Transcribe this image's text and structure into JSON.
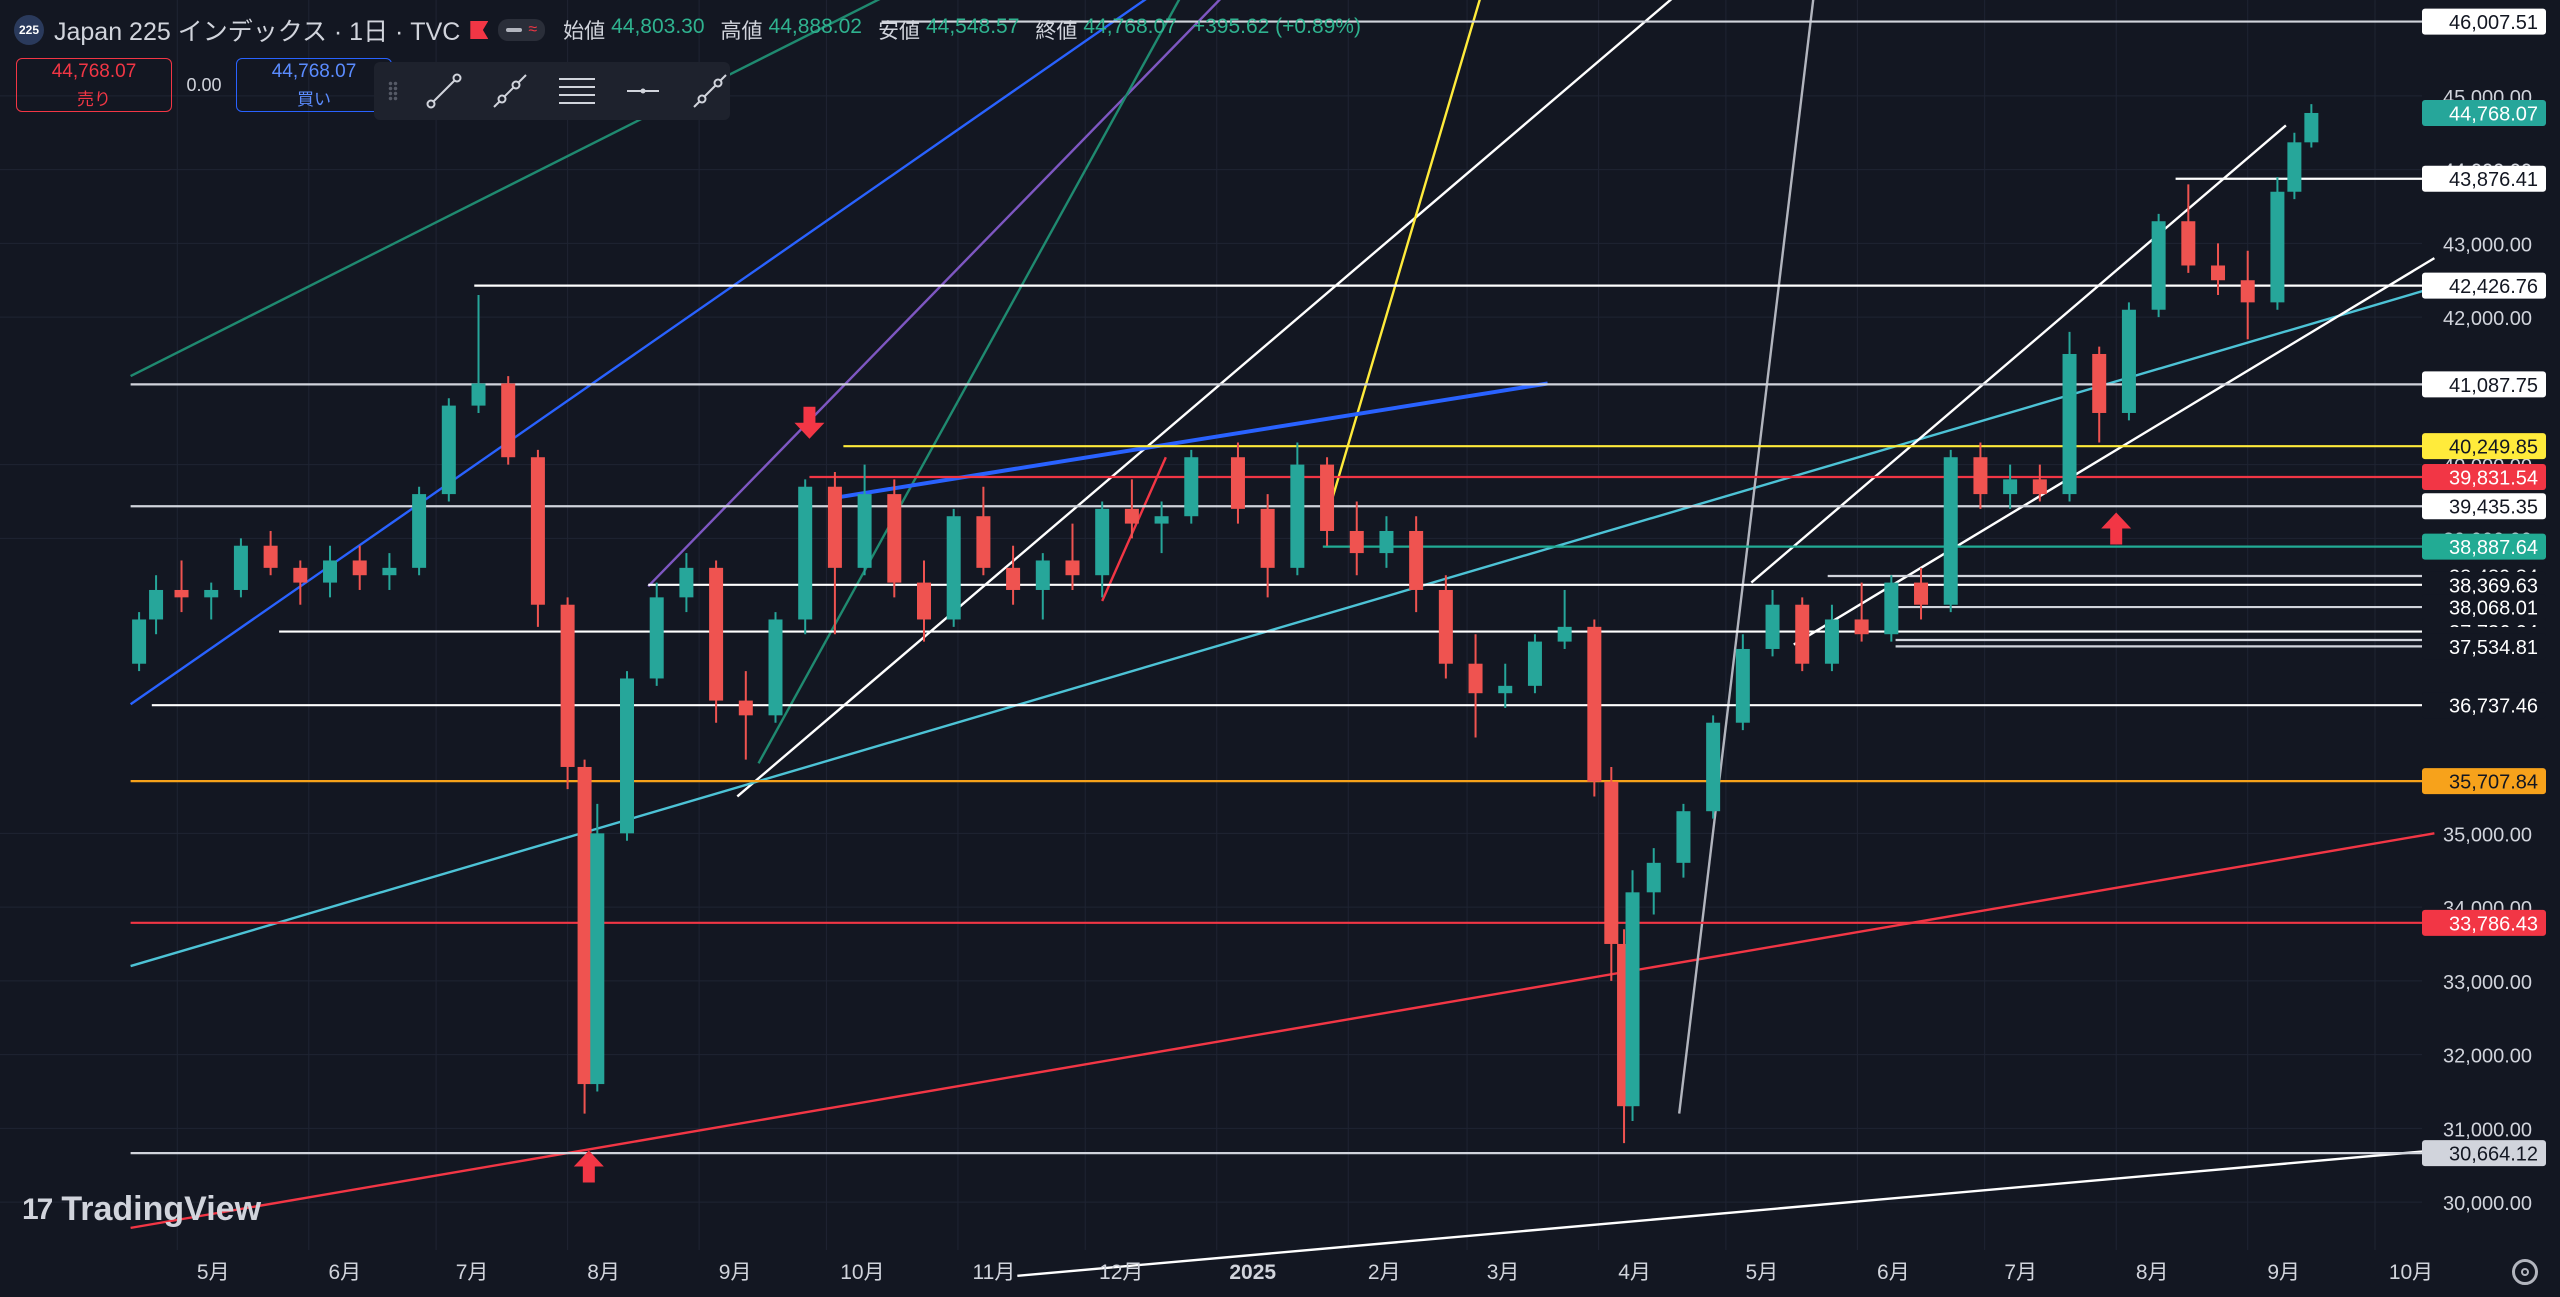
{
  "header": {
    "badge": "225",
    "title": "Japan 225 インデックス · 1日 · TVC",
    "ohlc": [
      {
        "k": "始値",
        "v": "44,803.30"
      },
      {
        "k": "高値",
        "v": "44,888.02"
      },
      {
        "k": "安値",
        "v": "44,548.57"
      },
      {
        "k": "終値",
        "v": "44,768.07"
      },
      {
        "k": "",
        "v": "+395.62 (+0.89%)"
      }
    ]
  },
  "trade": {
    "sell_price": "44,768.07",
    "sell_label": "売り",
    "spread": "0.00",
    "buy_price": "44,768.07",
    "buy_label": "買い"
  },
  "toolbar": {
    "tools": [
      "trend-line-icon",
      "ray-icon",
      "parallel-channel-icon",
      "horizontal-line-icon",
      "extended-line-icon"
    ]
  },
  "logo": {
    "text": "TradingView"
  },
  "colors": {
    "bg": "#131722",
    "up": "#26a69a",
    "down": "#ef5350",
    "grid": "#1f2433"
  },
  "chart_data": {
    "type": "candlestick",
    "y_ticks": [
      "45,000.00",
      "44,000.00",
      "43,000.00",
      "42,000.00",
      "40,000.00",
      "39,000.00",
      "35,000.00",
      "34,000.00",
      "33,000.00",
      "32,000.00",
      "31,000.00",
      "30,000.00"
    ],
    "x_ticks": [
      "5月",
      "6月",
      "7月",
      "8月",
      "9月",
      "10月",
      "11月",
      "12月",
      "2025",
      "2月",
      "3月",
      "4月",
      "5月",
      "6月",
      "7月",
      "8月",
      "9月",
      "10月"
    ],
    "ylim": [
      29350,
      46300
    ],
    "last_price": 44768.07,
    "price_labels": [
      {
        "v": 46007.51,
        "text": "46,007.51",
        "bg": "#ffffff",
        "fg": "#131722"
      },
      {
        "v": 44768.07,
        "text": "44,768.07",
        "bg": "#26a69a",
        "fg": "#ffffff"
      },
      {
        "v": 43876.41,
        "text": "43,876.41",
        "bg": "#ffffff",
        "fg": "#131722"
      },
      {
        "v": 42426.76,
        "text": "42,426.76",
        "bg": "#ffffff",
        "fg": "#131722"
      },
      {
        "v": 41087.75,
        "text": "41,087.75",
        "bg": "#ffffff",
        "fg": "#131722"
      },
      {
        "v": 40249.85,
        "text": "40,249.85",
        "bg": "#ffeb3b",
        "fg": "#131722"
      },
      {
        "v": 39831.54,
        "text": "39,831.54",
        "bg": "#f23645",
        "fg": "#ffffff"
      },
      {
        "v": 39435.35,
        "text": "39,435.35",
        "bg": "#ffffff",
        "fg": "#131722"
      },
      {
        "v": 38887.64,
        "text": "38,887.64",
        "bg": "#22ab94",
        "fg": "#ffffff"
      },
      {
        "v": 38489.84,
        "text": "38,489.84",
        "bg": "#131722",
        "fg": "#ffffff"
      },
      {
        "v": 38369.63,
        "text": "38,369.63",
        "bg": "#131722",
        "fg": "#ffffff"
      },
      {
        "v": 38068.01,
        "text": "38,068.01",
        "bg": "#131722",
        "fg": "#ffffff"
      },
      {
        "v": 37736.04,
        "text": "37,736.04",
        "bg": "#131722",
        "fg": "#ffffff"
      },
      {
        "v": 37621.77,
        "text": "37,621.77",
        "bg": "#131722",
        "fg": "#ffffff"
      },
      {
        "v": 37534.81,
        "text": "37,534.81",
        "bg": "#131722",
        "fg": "#ffffff"
      },
      {
        "v": 36737.46,
        "text": "36,737.46",
        "bg": "#131722",
        "fg": "#ffffff"
      },
      {
        "v": 35707.84,
        "text": "35,707.84",
        "bg": "#f7a21b",
        "fg": "#131722"
      },
      {
        "v": 33786.43,
        "text": "33,786.43",
        "bg": "#f23645",
        "fg": "#ffffff"
      },
      {
        "v": 30664.12,
        "text": "30,664.12",
        "bg": "#d1d4dc",
        "fg": "#131722"
      }
    ],
    "horizontal_lines": [
      {
        "v": 46007.51,
        "from": "2024-10-14",
        "color": "#d1d4dc"
      },
      {
        "v": 43876.41,
        "from": "2025-08-15",
        "color": "#ffffff"
      },
      {
        "v": 42426.76,
        "from": "2024-07-10",
        "color": "#ffffff"
      },
      {
        "v": 41087.75,
        "from": "2024-04-20",
        "color": "#d1d4dc"
      },
      {
        "v": 40249.85,
        "from": "2024-10-05",
        "color": "#ffeb3b"
      },
      {
        "v": 39831.54,
        "from": "2024-09-27",
        "color": "#f23645"
      },
      {
        "v": 39435.35,
        "from": "2024-04-20",
        "color": "#d1d4dc"
      },
      {
        "v": 38887.64,
        "from": "2025-01-26",
        "color": "#22ab94"
      },
      {
        "v": 38489.84,
        "from": "2025-05-25",
        "color": "#d1d4dc"
      },
      {
        "v": 38369.63,
        "from": "2024-08-20",
        "color": "#ffffff"
      },
      {
        "v": 38068.01,
        "from": "2025-06-10",
        "color": "#d1d4dc"
      },
      {
        "v": 37736.04,
        "from": "2024-05-25",
        "color": "#ffffff"
      },
      {
        "v": 37621.77,
        "from": "2025-06-10",
        "color": "#d1d4dc"
      },
      {
        "v": 37534.81,
        "from": "2025-06-10",
        "color": "#d1d4dc"
      },
      {
        "v": 36737.46,
        "from": "2024-04-25",
        "color": "#ffffff"
      },
      {
        "v": 35707.84,
        "from": "2024-04-20",
        "color": "#f7a21b"
      },
      {
        "v": 33786.43,
        "from": "2024-04-20",
        "color": "#f23645"
      },
      {
        "v": 30664.12,
        "from": "2024-04-20",
        "color": "#d1d4dc"
      }
    ],
    "trend_lines": [
      {
        "from": [
          "2024-04-20",
          41200
        ],
        "to": [
          "2024-10-20",
          46500
        ],
        "color": "#1f8a70"
      },
      {
        "from": [
          "2024-04-20",
          36750
        ],
        "to": [
          "2024-12-20",
          46500
        ],
        "color": "#2962ff"
      },
      {
        "from": [
          "2024-08-20",
          38350
        ],
        "to": [
          "2025-01-05",
          46500
        ],
        "color": "#7e57c2"
      },
      {
        "from": [
          "2024-09-15",
          35950
        ],
        "to": [
          "2024-12-25",
          46500
        ],
        "color": "#1f8a70"
      },
      {
        "from": [
          "2024-09-10",
          35500
        ],
        "to": [
          "2025-04-22",
          46500
        ],
        "color": "#ffffff"
      },
      {
        "from": [
          "2025-01-27",
          39300
        ],
        "to": [
          "2025-03-05",
          46500
        ],
        "color": "#ffeb3b"
      },
      {
        "from": [
          "2024-04-20",
          33200
        ],
        "to": [
          "2025-10-15",
          42400
        ],
        "color": "#4dc3d6"
      },
      {
        "from": [
          "2024-04-20",
          29650
        ],
        "to": [
          "2025-10-15",
          35000
        ],
        "color": "#f23645"
      },
      {
        "from": [
          "2024-11-15",
          29000
        ],
        "to": [
          "2025-10-15",
          30700
        ],
        "color": "#ffffff"
      },
      {
        "from": [
          "2025-05-07",
          38400
        ],
        "to": [
          "2025-09-10",
          44600
        ],
        "color": "#ffffff"
      },
      {
        "from": [
          "2025-05-17",
          37560
        ],
        "to": [
          "2025-10-15",
          42800
        ],
        "color": "#ffffff"
      },
      {
        "from": [
          "2025-04-20",
          31200
        ],
        "to": [
          "2025-05-22",
          46500
        ],
        "color": "#b2b5be"
      },
      {
        "from": [
          "2024-10-03",
          39550
        ],
        "to": [
          "2025-03-20",
          41100
        ],
        "color": "#2962ff"
      },
      {
        "from": [
          "2024-12-05",
          38150
        ],
        "to": [
          "2024-12-20",
          40100
        ],
        "color": "#f23645"
      }
    ],
    "arrows": [
      {
        "date": "2024-08-06",
        "v": 30700,
        "dir": "up"
      },
      {
        "date": "2024-09-27",
        "v": 40350,
        "dir": "down"
      },
      {
        "date": "2025-08-01",
        "v": 39350,
        "dir": "up"
      }
    ],
    "candles": [
      [
        "2024-04-22",
        37300,
        38000,
        37200,
        37900
      ],
      [
        "2024-04-26",
        37900,
        38500,
        37700,
        38300
      ],
      [
        "2024-05-02",
        38300,
        38700,
        38000,
        38200
      ],
      [
        "2024-05-09",
        38200,
        38400,
        37900,
        38300
      ],
      [
        "2024-05-16",
        38300,
        39000,
        38200,
        38900
      ],
      [
        "2024-05-23",
        38900,
        39100,
        38500,
        38600
      ],
      [
        "2024-05-30",
        38600,
        38700,
        38100,
        38400
      ],
      [
        "2024-06-06",
        38400,
        38900,
        38200,
        38700
      ],
      [
        "2024-06-13",
        38700,
        38900,
        38300,
        38500
      ],
      [
        "2024-06-20",
        38500,
        38800,
        38300,
        38600
      ],
      [
        "2024-06-27",
        38600,
        39700,
        38500,
        39600
      ],
      [
        "2024-07-04",
        39600,
        40900,
        39500,
        40800
      ],
      [
        "2024-07-11",
        40800,
        42300,
        40700,
        41100
      ],
      [
        "2024-07-18",
        41100,
        41200,
        40000,
        40100
      ],
      [
        "2024-07-25",
        40100,
        40200,
        37800,
        38100
      ],
      [
        "2024-08-01",
        38100,
        38200,
        35600,
        35900
      ],
      [
        "2024-08-05",
        35900,
        36000,
        31200,
        31600
      ],
      [
        "2024-08-08",
        31600,
        35400,
        31500,
        35000
      ],
      [
        "2024-08-15",
        35000,
        37200,
        34900,
        37100
      ],
      [
        "2024-08-22",
        37100,
        38400,
        37000,
        38200
      ],
      [
        "2024-08-29",
        38200,
        38800,
        38000,
        38600
      ],
      [
        "2024-09-05",
        38600,
        38700,
        36500,
        36800
      ],
      [
        "2024-09-12",
        36800,
        37200,
        36000,
        36600
      ],
      [
        "2024-09-19",
        36600,
        38000,
        36500,
        37900
      ],
      [
        "2024-09-26",
        37900,
        39800,
        37700,
        39700
      ],
      [
        "2024-10-03",
        39700,
        39900,
        37700,
        38600
      ],
      [
        "2024-10-10",
        38600,
        40000,
        38500,
        39600
      ],
      [
        "2024-10-17",
        39600,
        39800,
        38200,
        38400
      ],
      [
        "2024-10-24",
        38400,
        38700,
        37600,
        37900
      ],
      [
        "2024-10-31",
        37900,
        39400,
        37800,
        39300
      ],
      [
        "2024-11-07",
        39300,
        39700,
        38500,
        38600
      ],
      [
        "2024-11-14",
        38600,
        38900,
        38100,
        38300
      ],
      [
        "2024-11-21",
        38300,
        38800,
        37900,
        38700
      ],
      [
        "2024-11-28",
        38700,
        39200,
        38300,
        38500
      ],
      [
        "2024-12-05",
        38500,
        39500,
        38200,
        39400
      ],
      [
        "2024-12-12",
        39400,
        39800,
        39000,
        39200
      ],
      [
        "2024-12-19",
        39200,
        39500,
        38800,
        39300
      ],
      [
        "2024-12-26",
        39300,
        40200,
        39200,
        40100
      ],
      [
        "2025-01-06",
        40100,
        40300,
        39200,
        39400
      ],
      [
        "2025-01-13",
        39400,
        39600,
        38200,
        38600
      ],
      [
        "2025-01-20",
        38600,
        40300,
        38500,
        40000
      ],
      [
        "2025-01-27",
        40000,
        40100,
        38900,
        39100
      ],
      [
        "2025-02-03",
        39100,
        39500,
        38500,
        38800
      ],
      [
        "2025-02-10",
        38800,
        39300,
        38600,
        39100
      ],
      [
        "2025-02-17",
        39100,
        39300,
        38000,
        38300
      ],
      [
        "2025-02-24",
        38300,
        38500,
        37100,
        37300
      ],
      [
        "2025-03-03",
        37300,
        37700,
        36300,
        36900
      ],
      [
        "2025-03-10",
        36900,
        37300,
        36700,
        37000
      ],
      [
        "2025-03-17",
        37000,
        37700,
        36900,
        37600
      ],
      [
        "2025-03-24",
        37600,
        38300,
        37500,
        37800
      ],
      [
        "2025-03-31",
        37800,
        37900,
        35500,
        35700
      ],
      [
        "2025-04-04",
        35700,
        35900,
        33000,
        33500
      ],
      [
        "2025-04-07",
        33500,
        33700,
        30800,
        31300
      ],
      [
        "2025-04-09",
        31300,
        34500,
        31100,
        34200
      ],
      [
        "2025-04-14",
        34200,
        34800,
        33900,
        34600
      ],
      [
        "2025-04-21",
        34600,
        35400,
        34400,
        35300
      ],
      [
        "2025-04-28",
        35300,
        36600,
        35200,
        36500
      ],
      [
        "2025-05-05",
        36500,
        37700,
        36400,
        37500
      ],
      [
        "2025-05-12",
        37500,
        38300,
        37400,
        38100
      ],
      [
        "2025-05-19",
        38100,
        38200,
        37200,
        37300
      ],
      [
        "2025-05-26",
        37300,
        38100,
        37200,
        37900
      ],
      [
        "2025-06-02",
        37900,
        38400,
        37600,
        37700
      ],
      [
        "2025-06-09",
        37700,
        38500,
        37600,
        38400
      ],
      [
        "2025-06-16",
        38400,
        38600,
        37900,
        38100
      ],
      [
        "2025-06-23",
        38100,
        40200,
        38000,
        40100
      ],
      [
        "2025-06-30",
        40100,
        40300,
        39400,
        39600
      ],
      [
        "2025-07-07",
        39600,
        40000,
        39400,
        39800
      ],
      [
        "2025-07-14",
        39800,
        40000,
        39500,
        39600
      ],
      [
        "2025-07-21",
        39600,
        41800,
        39500,
        41500
      ],
      [
        "2025-07-28",
        41500,
        41600,
        40300,
        40700
      ],
      [
        "2025-08-04",
        40700,
        42200,
        40600,
        42100
      ],
      [
        "2025-08-11",
        42100,
        43400,
        42000,
        43300
      ],
      [
        "2025-08-18",
        43300,
        43800,
        42600,
        42700
      ],
      [
        "2025-08-25",
        42700,
        43000,
        42300,
        42500
      ],
      [
        "2025-09-01",
        42500,
        42900,
        41700,
        42200
      ],
      [
        "2025-09-08",
        42200,
        43900,
        42100,
        43700
      ],
      [
        "2025-09-12",
        43700,
        44500,
        43600,
        44370
      ],
      [
        "2025-09-16",
        44370,
        44888,
        44300,
        44768
      ]
    ]
  }
}
